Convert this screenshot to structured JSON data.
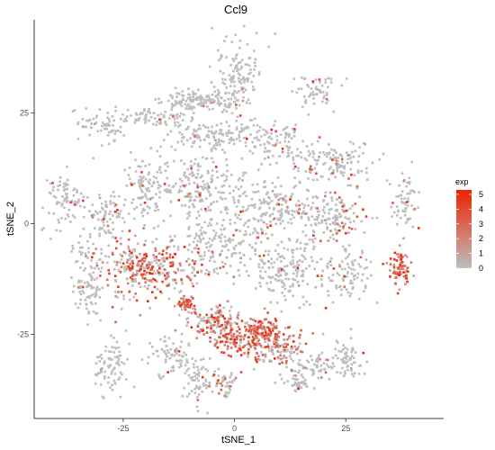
{
  "chart_data": {
    "type": "scatter",
    "title": "Ccl9",
    "xlabel": "tSNE_1",
    "ylabel": "tSNE_2",
    "xlim": [
      -45,
      47
    ],
    "ylim": [
      -44,
      46
    ],
    "x_ticks": [
      -25,
      0,
      25
    ],
    "y_ticks": [
      -25,
      0,
      25
    ],
    "grid": false,
    "legend": {
      "title": "exp",
      "placement": "right",
      "breaks": [
        5,
        4,
        3,
        2,
        1,
        0
      ],
      "low_color": "#BEBEBE",
      "high_color": "#EE2200"
    },
    "color_range": [
      0,
      5.3
    ],
    "clusters": [
      {
        "center": [
          -9,
          28
        ],
        "extent": [
          6,
          2
        ],
        "density": 120,
        "expression": 0.02
      },
      {
        "center": [
          0,
          32
        ],
        "extent": [
          4,
          9
        ],
        "density": 160,
        "expression": 0.03
      },
      {
        "center": [
          18,
          30
        ],
        "extent": [
          4,
          3
        ],
        "density": 60,
        "expression": 0.05
      },
      {
        "center": [
          -18,
          24
        ],
        "extent": [
          6,
          2
        ],
        "density": 70,
        "expression": 0.02
      },
      {
        "center": [
          -30,
          22
        ],
        "extent": [
          5,
          3
        ],
        "density": 60,
        "expression": 0.02
      },
      {
        "center": [
          -5,
          20
        ],
        "extent": [
          8,
          3
        ],
        "density": 110,
        "expression": 0.02
      },
      {
        "center": [
          8,
          18
        ],
        "extent": [
          6,
          4
        ],
        "density": 90,
        "expression": 0.1
      },
      {
        "center": [
          22,
          14
        ],
        "extent": [
          8,
          4
        ],
        "density": 130,
        "expression": 0.12
      },
      {
        "center": [
          -38,
          5
        ],
        "extent": [
          4,
          5
        ],
        "density": 80,
        "expression": 0.01
      },
      {
        "center": [
          -20,
          8
        ],
        "extent": [
          5,
          6
        ],
        "density": 100,
        "expression": 0.05
      },
      {
        "center": [
          -7,
          8
        ],
        "extent": [
          9,
          6
        ],
        "density": 200,
        "expression": 0.05
      },
      {
        "center": [
          8,
          4
        ],
        "extent": [
          7,
          5
        ],
        "density": 150,
        "expression": 0.08
      },
      {
        "center": [
          22,
          2
        ],
        "extent": [
          7,
          6
        ],
        "density": 160,
        "expression": 0.15
      },
      {
        "center": [
          38,
          5
        ],
        "extent": [
          3,
          5
        ],
        "density": 60,
        "expression": 0.05
      },
      {
        "center": [
          -28,
          2
        ],
        "extent": [
          4,
          4
        ],
        "density": 70,
        "expression": 0.1
      },
      {
        "center": [
          -20,
          -10
        ],
        "extent": [
          10,
          6
        ],
        "density": 320,
        "expression": 0.5
      },
      {
        "center": [
          -33,
          -13
        ],
        "extent": [
          3,
          8
        ],
        "density": 100,
        "expression": 0.03
      },
      {
        "center": [
          -3,
          -5
        ],
        "extent": [
          8,
          6
        ],
        "density": 160,
        "expression": 0.06
      },
      {
        "center": [
          12,
          -10
        ],
        "extent": [
          7,
          6
        ],
        "density": 170,
        "expression": 0.05
      },
      {
        "center": [
          25,
          -12
        ],
        "extent": [
          5,
          5
        ],
        "density": 90,
        "expression": 0.05
      },
      {
        "center": [
          37,
          -10
        ],
        "extent": [
          2,
          4
        ],
        "density": 70,
        "expression": 1.8
      },
      {
        "center": [
          -11,
          -18
        ],
        "extent": [
          1.5,
          1.5
        ],
        "density": 40,
        "expression": 1.5
      },
      {
        "center": [
          -5,
          -22
        ],
        "extent": [
          5,
          3
        ],
        "density": 120,
        "expression": 0.6
      },
      {
        "center": [
          0,
          -26
        ],
        "extent": [
          4,
          3
        ],
        "density": 110,
        "expression": 0.9
      },
      {
        "center": [
          6,
          -24
        ],
        "extent": [
          3,
          3
        ],
        "density": 100,
        "expression": 1.2
      },
      {
        "center": [
          10,
          -28
        ],
        "extent": [
          5,
          4
        ],
        "density": 140,
        "expression": 0.5
      },
      {
        "center": [
          -28,
          -32
        ],
        "extent": [
          3,
          6
        ],
        "density": 80,
        "expression": 0.02
      },
      {
        "center": [
          -15,
          -30
        ],
        "extent": [
          4,
          4
        ],
        "density": 70,
        "expression": 0.03
      },
      {
        "center": [
          -8,
          -35
        ],
        "extent": [
          3,
          5
        ],
        "density": 60,
        "expression": 0.03
      },
      {
        "center": [
          -3,
          -36
        ],
        "extent": [
          3,
          3
        ],
        "density": 50,
        "expression": 0.3
      },
      {
        "center": [
          18,
          -32
        ],
        "extent": [
          4,
          3
        ],
        "density": 60,
        "expression": 0.04
      },
      {
        "center": [
          26,
          -30
        ],
        "extent": [
          3,
          4
        ],
        "density": 60,
        "expression": 0.03
      },
      {
        "center": [
          14,
          -36
        ],
        "extent": [
          3,
          2
        ],
        "density": 40,
        "expression": 0.2
      }
    ]
  }
}
